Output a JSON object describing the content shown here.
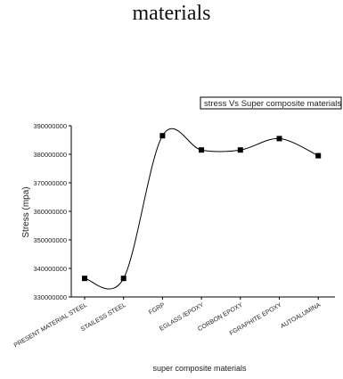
{
  "page": {
    "title": "materials"
  },
  "chart_data": {
    "type": "line",
    "title": "",
    "legend": {
      "label": "stress Vs Super composite materials",
      "placement": "top-right"
    },
    "xlabel": "super composite materials",
    "ylabel": "Stress (mpa)",
    "categories": [
      "PRESENT MATERIAL STEEL",
      "STAILESS STEEL",
      "FGRP",
      "EGLASS /EPOXY",
      "CORBON EPOXY",
      "FGRAPHITE EPOXY",
      "AUTOALUMINA"
    ],
    "series": [
      {
        "values": [
          336500000,
          336500000,
          386500000,
          381500000,
          381500000,
          385500000,
          379500000
        ]
      }
    ],
    "ylim": [
      330000000,
      390000000
    ],
    "yticks": [
      330000000,
      340000000,
      350000000,
      360000000,
      370000000,
      380000000,
      390000000
    ],
    "ytick_labels": [
      "330000000",
      "340000000",
      "350000000",
      "360000000",
      "370000000",
      "380000000",
      "390000000"
    ],
    "grid": false,
    "line_style": "smooth",
    "marker": "square",
    "colors": {
      "line": "#000000",
      "marker": "#000000",
      "axis": "#000000"
    }
  }
}
